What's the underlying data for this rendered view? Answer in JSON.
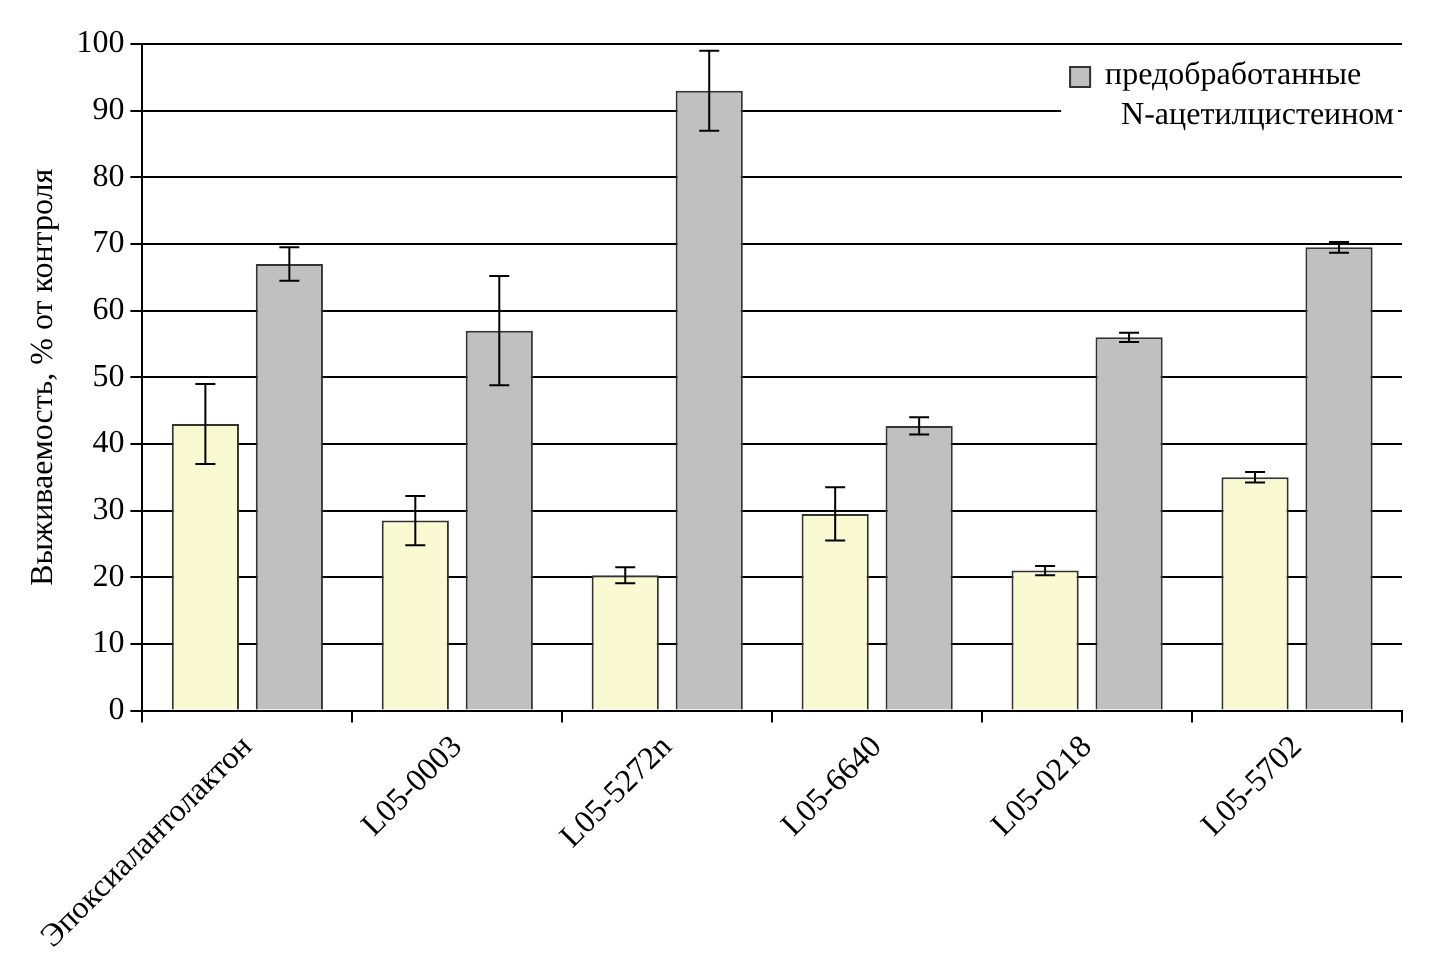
{
  "chart_data": {
    "type": "bar",
    "ylabel": "Выживаемость, % от контроля",
    "categories": [
      "Эпоксиалантолактон",
      "L05-0003",
      "L05-5272n",
      "L05-6640",
      "L05-0218",
      "L05-5702"
    ],
    "series": [
      {
        "color": "#fafad2",
        "values": [
          43,
          28.5,
          20.3,
          29.5,
          21,
          35
        ],
        "errors": [
          6,
          3.7,
          1.2,
          4,
          0.7,
          0.8
        ]
      },
      {
        "name": "предобработанные N-ацетилцистеином",
        "color": "#c0c0c0",
        "values": [
          67,
          57,
          93,
          42.7,
          56,
          69.5
        ],
        "errors": [
          2.5,
          8.2,
          6,
          1.3,
          0.7,
          0.8
        ]
      }
    ],
    "ylim": [
      0,
      100
    ],
    "yticks": [
      0,
      10,
      20,
      30,
      40,
      50,
      60,
      70,
      80,
      90,
      100
    ],
    "grid": "y",
    "legend": "top right"
  }
}
